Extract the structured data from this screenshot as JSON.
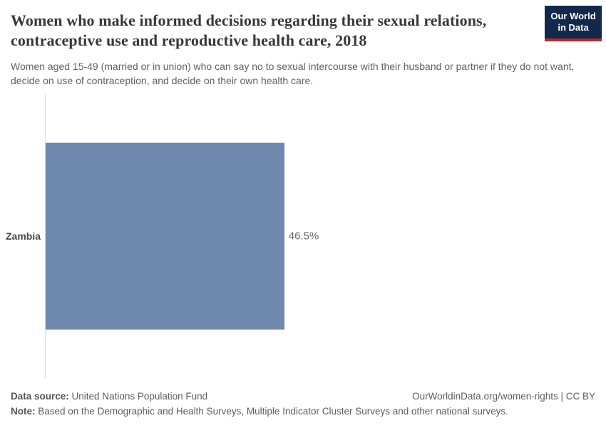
{
  "header": {
    "title": "Women who make informed decisions regarding their sexual relations, contraceptive use and reproductive health care, 2018",
    "subtitle": "Women aged 15-49 (married or in union) who can say no to sexual intercourse with their husband or partner if they do not want, decide on use of contraception, and decide on their own health care.",
    "logo": {
      "line1": "Our World",
      "line2": "in Data",
      "bg_color": "#12294b",
      "accent_color": "#c0272d"
    }
  },
  "chart_data": {
    "type": "bar",
    "orientation": "horizontal",
    "title": "Women who make informed decisions regarding their sexual relations, contraceptive use and reproductive health care, 2018",
    "categories": [
      "Zambia"
    ],
    "values": [
      46.5
    ],
    "value_labels": [
      "46.5%"
    ],
    "unit": "%",
    "xlim": [
      0,
      100
    ],
    "bar_color": "#6e88ae",
    "axis_line_color": "#dedede",
    "grid": false,
    "legend": "none"
  },
  "footer": {
    "data_source_label": "Data source:",
    "data_source_value": " United Nations Population Fund",
    "link": "OurWorldinData.org/women-rights | CC BY",
    "note_label": "Note:",
    "note_value": " Based on the Demographic and Health Surveys, Multiple Indicator Cluster Surveys and other national surveys."
  }
}
